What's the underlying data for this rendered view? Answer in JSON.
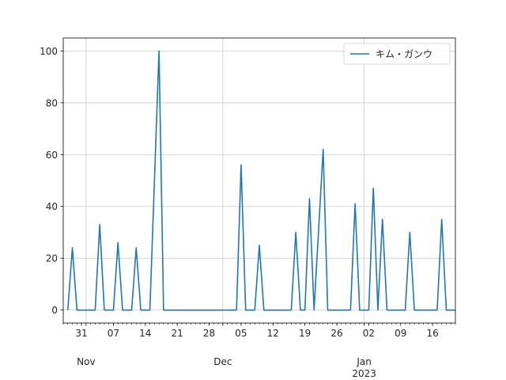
{
  "chart_data": {
    "type": "line",
    "title": "",
    "xlabel": "",
    "ylabel": "",
    "ylim": [
      -5,
      105
    ],
    "xlim": [
      "2022-10-27",
      "2023-01-21"
    ],
    "grid": true,
    "legend_position": "top-right",
    "yticks": [
      0,
      20,
      40,
      60,
      80,
      100
    ],
    "xticks_minor": [
      {
        "date": "2022-10-31",
        "label": "31"
      },
      {
        "date": "2022-11-07",
        "label": "07"
      },
      {
        "date": "2022-11-14",
        "label": "14"
      },
      {
        "date": "2022-11-21",
        "label": "21"
      },
      {
        "date": "2022-11-28",
        "label": "28"
      },
      {
        "date": "2022-12-05",
        "label": "05"
      },
      {
        "date": "2022-12-12",
        "label": "12"
      },
      {
        "date": "2022-12-19",
        "label": "19"
      },
      {
        "date": "2022-12-26",
        "label": "26"
      },
      {
        "date": "2023-01-02",
        "label": "02"
      },
      {
        "date": "2023-01-09",
        "label": "09"
      },
      {
        "date": "2023-01-16",
        "label": "16"
      }
    ],
    "xticks_major": [
      {
        "date": "2022-11-01",
        "label": "Nov"
      },
      {
        "date": "2022-12-01",
        "label": "Dec"
      },
      {
        "date": "2023-01-01",
        "label": "Jan\n2023"
      }
    ],
    "series": [
      {
        "name": "キム・ガンウ",
        "color": "#1f77b4",
        "points": [
          [
            "2022-10-28",
            0
          ],
          [
            "2022-10-29",
            24
          ],
          [
            "2022-10-30",
            0
          ],
          [
            "2022-10-31",
            0
          ],
          [
            "2022-11-01",
            0
          ],
          [
            "2022-11-02",
            0
          ],
          [
            "2022-11-03",
            0
          ],
          [
            "2022-11-04",
            33
          ],
          [
            "2022-11-05",
            0
          ],
          [
            "2022-11-06",
            0
          ],
          [
            "2022-11-07",
            0
          ],
          [
            "2022-11-08",
            26
          ],
          [
            "2022-11-09",
            0
          ],
          [
            "2022-11-10",
            0
          ],
          [
            "2022-11-11",
            0
          ],
          [
            "2022-11-12",
            24
          ],
          [
            "2022-11-13",
            0
          ],
          [
            "2022-11-14",
            0
          ],
          [
            "2022-11-15",
            0
          ],
          [
            "2022-11-16",
            50
          ],
          [
            "2022-11-17",
            100
          ],
          [
            "2022-11-18",
            0
          ],
          [
            "2022-11-19",
            0
          ],
          [
            "2022-11-20",
            0
          ],
          [
            "2022-11-21",
            0
          ],
          [
            "2022-11-22",
            0
          ],
          [
            "2022-11-23",
            0
          ],
          [
            "2022-11-24",
            0
          ],
          [
            "2022-11-25",
            0
          ],
          [
            "2022-11-26",
            0
          ],
          [
            "2022-11-27",
            0
          ],
          [
            "2022-11-28",
            0
          ],
          [
            "2022-11-29",
            0
          ],
          [
            "2022-11-30",
            0
          ],
          [
            "2022-12-01",
            0
          ],
          [
            "2022-12-02",
            0
          ],
          [
            "2022-12-03",
            0
          ],
          [
            "2022-12-04",
            0
          ],
          [
            "2022-12-05",
            56
          ],
          [
            "2022-12-06",
            0
          ],
          [
            "2022-12-07",
            0
          ],
          [
            "2022-12-08",
            0
          ],
          [
            "2022-12-09",
            25
          ],
          [
            "2022-12-10",
            0
          ],
          [
            "2022-12-11",
            0
          ],
          [
            "2022-12-12",
            0
          ],
          [
            "2022-12-13",
            0
          ],
          [
            "2022-12-14",
            0
          ],
          [
            "2022-12-15",
            0
          ],
          [
            "2022-12-16",
            0
          ],
          [
            "2022-12-17",
            30
          ],
          [
            "2022-12-18",
            0
          ],
          [
            "2022-12-19",
            0
          ],
          [
            "2022-12-20",
            43
          ],
          [
            "2022-12-21",
            0
          ],
          [
            "2022-12-22",
            31
          ],
          [
            "2022-12-23",
            62
          ],
          [
            "2022-12-24",
            0
          ],
          [
            "2022-12-25",
            0
          ],
          [
            "2022-12-26",
            0
          ],
          [
            "2022-12-27",
            0
          ],
          [
            "2022-12-28",
            0
          ],
          [
            "2022-12-29",
            0
          ],
          [
            "2022-12-30",
            41
          ],
          [
            "2022-12-31",
            0
          ],
          [
            "2023-01-01",
            0
          ],
          [
            "2023-01-02",
            0
          ],
          [
            "2023-01-03",
            47
          ],
          [
            "2023-01-04",
            0
          ],
          [
            "2023-01-05",
            35
          ],
          [
            "2023-01-06",
            0
          ],
          [
            "2023-01-07",
            0
          ],
          [
            "2023-01-08",
            0
          ],
          [
            "2023-01-09",
            0
          ],
          [
            "2023-01-10",
            0
          ],
          [
            "2023-01-11",
            30
          ],
          [
            "2023-01-12",
            0
          ],
          [
            "2023-01-13",
            0
          ],
          [
            "2023-01-14",
            0
          ],
          [
            "2023-01-15",
            0
          ],
          [
            "2023-01-16",
            0
          ],
          [
            "2023-01-17",
            0
          ],
          [
            "2023-01-18",
            35
          ],
          [
            "2023-01-19",
            0
          ],
          [
            "2023-01-20",
            0
          ],
          [
            "2023-01-21",
            0
          ]
        ]
      }
    ]
  }
}
